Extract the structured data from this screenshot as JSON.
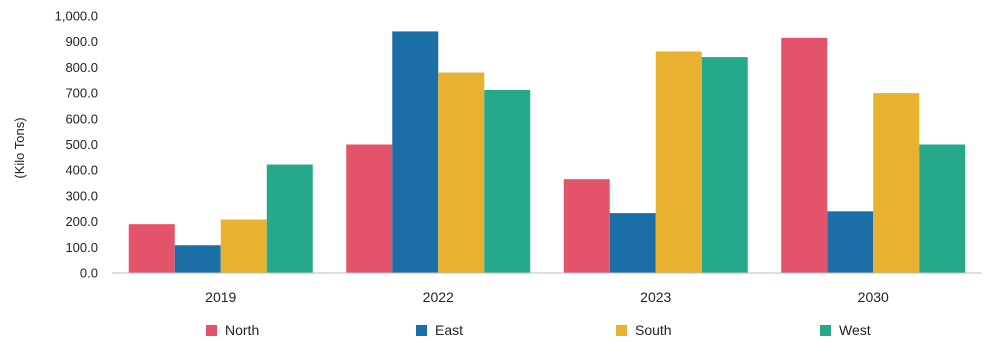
{
  "chart_data": {
    "type": "bar",
    "categories": [
      "2019",
      "2022",
      "2023",
      "2030"
    ],
    "ylabel": "(Kilo Tons)",
    "ylim": [
      0,
      1000
    ],
    "yticks": [
      "0.0",
      "100.0",
      "200.0",
      "300.0",
      "400.0",
      "500.0",
      "600.0",
      "700.0",
      "800.0",
      "900.0",
      "1,000.0"
    ],
    "grid": false,
    "legend_position": "bottom",
    "series": [
      {
        "name": "North",
        "color": "#e3546a",
        "values": [
          190,
          500,
          365,
          915
        ]
      },
      {
        "name": "East",
        "color": "#1b6fa6",
        "values": [
          108,
          940,
          233,
          240
        ]
      },
      {
        "name": "South",
        "color": "#e8b230",
        "values": [
          208,
          780,
          862,
          700
        ]
      },
      {
        "name": "West",
        "color": "#26a98b",
        "values": [
          422,
          712,
          840,
          500
        ]
      }
    ]
  }
}
